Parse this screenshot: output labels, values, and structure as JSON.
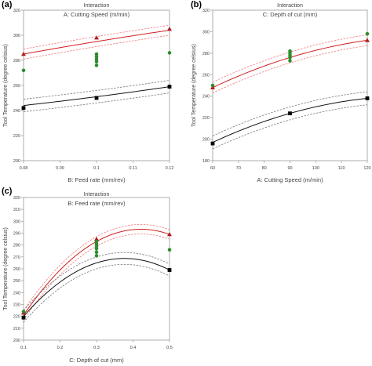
{
  "panels": [
    {
      "label": "(a)"
    },
    {
      "label": "(b)"
    },
    {
      "label": "(c)"
    }
  ],
  "colors": {
    "high_line": "#d21f1f",
    "high_marker": "#b01b1b",
    "low_line": "#111111",
    "low_marker": "#000000",
    "design_point": "#2e8b2e",
    "ci_high": "#ee7d7d",
    "ci_low": "#7a7a7a",
    "frame": "#9a9a9a",
    "text": "#444444"
  },
  "chart_data": [
    {
      "type": "line",
      "title": "Interaction",
      "subtitle": "A: Cutting Speed (m/min)",
      "xlabel": "B: Feed rate (mm/rev)",
      "ylabel": "Tool Temperature (degree celsius)",
      "xlim": [
        0.08,
        0.12
      ],
      "ylim": [
        200,
        320
      ],
      "xticks": [
        0.08,
        0.09,
        0.1,
        0.11,
        0.12
      ],
      "xticklabels": [
        "0.08",
        "0.09",
        "0.1",
        "0.11",
        "0.12"
      ],
      "yticks": [
        200,
        220,
        240,
        260,
        280,
        300,
        320
      ],
      "yticklabels": [
        "200",
        "220",
        "240",
        "260",
        "280",
        "300",
        "320"
      ],
      "series": [
        {
          "level": "high",
          "x": [
            0.08,
            0.1,
            0.12
          ],
          "y": [
            285,
            295,
            304
          ],
          "ci_half": 4,
          "marker_x": [
            0.08,
            0.1,
            0.12
          ],
          "marker_y": [
            285,
            298,
            305
          ],
          "marker": "triangle"
        },
        {
          "level": "low",
          "x": [
            0.08,
            0.1,
            0.12
          ],
          "y": [
            244,
            251,
            259
          ],
          "ci_half": 5,
          "marker_x": [
            0.08,
            0.1,
            0.12
          ],
          "marker_y": [
            242,
            250,
            259
          ],
          "marker": "square"
        }
      ],
      "design_points": {
        "x": [
          0.08,
          0.1,
          0.1,
          0.1,
          0.1,
          0.1,
          0.12
        ],
        "y": [
          272,
          276,
          279,
          281,
          283,
          285,
          286
        ]
      }
    },
    {
      "type": "line",
      "title": "Interaction",
      "subtitle": "C: Depth of cut (mm)",
      "xlabel": "A: Cutting Speed (m/min)",
      "ylabel": "Tool Temperature (degree celsius)",
      "xlim": [
        60,
        120
      ],
      "ylim": [
        180,
        320
      ],
      "xticks": [
        60,
        70,
        80,
        90,
        100,
        110,
        120
      ],
      "xticklabels": [
        "60",
        "70",
        "80",
        "90",
        "100",
        "110",
        "120"
      ],
      "yticks": [
        180,
        200,
        220,
        240,
        260,
        280,
        300,
        320
      ],
      "yticklabels": [
        "180",
        "200",
        "220",
        "240",
        "260",
        "280",
        "300",
        "320"
      ],
      "series": [
        {
          "level": "high",
          "x": [
            60,
            90,
            120
          ],
          "y": [
            248,
            276,
            292
          ],
          "ci_half": 5,
          "marker_x": [
            60,
            120
          ],
          "marker_y": [
            248,
            292
          ],
          "marker": "triangle"
        },
        {
          "level": "low",
          "x": [
            60,
            90,
            120
          ],
          "y": [
            197,
            224,
            238
          ],
          "ci_half": 6,
          "marker_x": [
            60,
            90,
            120
          ],
          "marker_y": [
            196,
            224,
            238
          ],
          "marker": "square"
        }
      ],
      "design_points": {
        "x": [
          60,
          90,
          90,
          90,
          90,
          90,
          120
        ],
        "y": [
          250,
          273,
          276,
          278,
          280,
          282,
          298
        ]
      }
    },
    {
      "type": "line",
      "title": "Interaction",
      "subtitle": "B: Feed rate (mm/rev)",
      "xlabel": "C: Depth of cut (mm)",
      "ylabel": "Tool Temperature (degree celsius)",
      "xlim": [
        0.1,
        0.5
      ],
      "ylim": [
        200,
        320
      ],
      "xticks": [
        0.1,
        0.2,
        0.3,
        0.4,
        0.5
      ],
      "xticklabels": [
        "0.1",
        "0.2",
        "0.3",
        "0.4",
        "0.5"
      ],
      "yticks": [
        200,
        210,
        220,
        230,
        240,
        250,
        260,
        270,
        280,
        290,
        300,
        310,
        320
      ],
      "yticklabels": [
        "200",
        "210",
        "220",
        "230",
        "240",
        "250",
        "260",
        "270",
        "280",
        "290",
        "300",
        "310",
        "320"
      ],
      "series": [
        {
          "level": "high",
          "x": [
            0.1,
            0.3,
            0.5
          ],
          "y": [
            221,
            283,
            289
          ],
          "ci_half": 4,
          "marker_x": [
            0.1,
            0.3,
            0.5
          ],
          "marker_y": [
            223,
            285,
            289
          ],
          "marker": "triangle"
        },
        {
          "level": "low",
          "x": [
            0.1,
            0.3,
            0.5
          ],
          "y": [
            220,
            265,
            259
          ],
          "ci_half": 5,
          "marker_x": [
            0.1,
            0.5
          ],
          "marker_y": [
            219,
            259
          ],
          "marker": "square"
        }
      ],
      "design_points": {
        "x": [
          0.1,
          0.3,
          0.3,
          0.3,
          0.3,
          0.3,
          0.3,
          0.5
        ],
        "y": [
          224,
          271,
          274,
          277,
          279,
          281,
          283,
          276
        ]
      }
    }
  ]
}
